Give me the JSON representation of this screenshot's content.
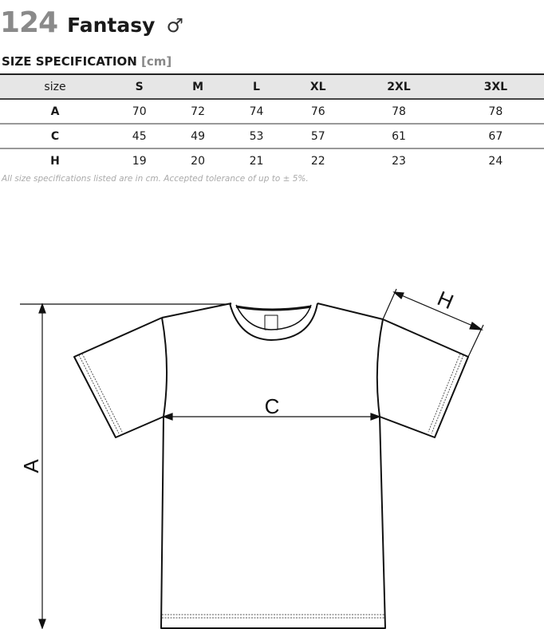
{
  "header": {
    "product_number": "124",
    "product_name": "Fantasy",
    "gender_symbol": "♂"
  },
  "spec": {
    "title": "SIZE SPECIFICATION",
    "unit": "[cm]"
  },
  "table": {
    "columns": [
      "size",
      "S",
      "M",
      "L",
      "XL",
      "2XL",
      "3XL"
    ],
    "rows": [
      {
        "label": "A",
        "values": [
          "70",
          "72",
          "74",
          "76",
          "78",
          "78"
        ]
      },
      {
        "label": "C",
        "values": [
          "45",
          "49",
          "53",
          "57",
          "61",
          "67"
        ]
      },
      {
        "label": "H",
        "values": [
          "19",
          "20",
          "21",
          "22",
          "23",
          "24"
        ]
      }
    ]
  },
  "note": "All size specifications listed are in cm. Accepted tolerance of up to ± 5%.",
  "diagram": {
    "labels": {
      "a": "A",
      "c": "C",
      "h": "H"
    }
  }
}
